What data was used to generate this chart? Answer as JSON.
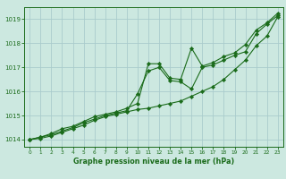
{
  "title": "Graphe pression niveau de la mer (hPa)",
  "bg_color": "#cce8e0",
  "grid_color": "#aacccc",
  "line_color": "#1a6b1a",
  "xlim": [
    -0.5,
    23.5
  ],
  "ylim": [
    1013.7,
    1019.5
  ],
  "xticks": [
    0,
    1,
    2,
    3,
    4,
    5,
    6,
    7,
    8,
    9,
    10,
    11,
    12,
    13,
    14,
    15,
    16,
    17,
    18,
    19,
    20,
    21,
    22,
    23
  ],
  "yticks": [
    1014,
    1015,
    1016,
    1017,
    1018,
    1019
  ],
  "series1_x": [
    0,
    1,
    2,
    3,
    4,
    5,
    6,
    7,
    8,
    9,
    10,
    11,
    12,
    13,
    14,
    15,
    16,
    17,
    18,
    19,
    20,
    21,
    22,
    23
  ],
  "series1_y": [
    1014.0,
    1014.1,
    1014.25,
    1014.45,
    1014.55,
    1014.75,
    1014.95,
    1015.05,
    1015.15,
    1015.3,
    1015.5,
    1017.15,
    1017.15,
    1016.55,
    1016.5,
    1017.8,
    1017.05,
    1017.2,
    1017.45,
    1017.6,
    1017.95,
    1018.55,
    1018.85,
    1019.25
  ],
  "series2_x": [
    0,
    1,
    2,
    3,
    4,
    5,
    6,
    7,
    8,
    9,
    10,
    11,
    12,
    13,
    14,
    15,
    16,
    17,
    18,
    19,
    20,
    21,
    22,
    23
  ],
  "series2_y": [
    1014.0,
    1014.1,
    1014.2,
    1014.35,
    1014.5,
    1014.7,
    1014.85,
    1015.0,
    1015.1,
    1015.2,
    1015.9,
    1016.85,
    1017.0,
    1016.45,
    1016.4,
    1016.1,
    1017.0,
    1017.1,
    1017.3,
    1017.5,
    1017.65,
    1018.4,
    1018.8,
    1019.15
  ],
  "series3_x": [
    0,
    1,
    2,
    3,
    4,
    5,
    6,
    7,
    8,
    9,
    10,
    11,
    12,
    13,
    14,
    15,
    16,
    17,
    18,
    19,
    20,
    21,
    22,
    23
  ],
  "series3_y": [
    1014.0,
    1014.05,
    1014.15,
    1014.3,
    1014.45,
    1014.6,
    1014.8,
    1014.95,
    1015.05,
    1015.15,
    1015.25,
    1015.3,
    1015.4,
    1015.5,
    1015.6,
    1015.8,
    1016.0,
    1016.2,
    1016.5,
    1016.9,
    1017.3,
    1017.9,
    1018.3,
    1019.1
  ]
}
